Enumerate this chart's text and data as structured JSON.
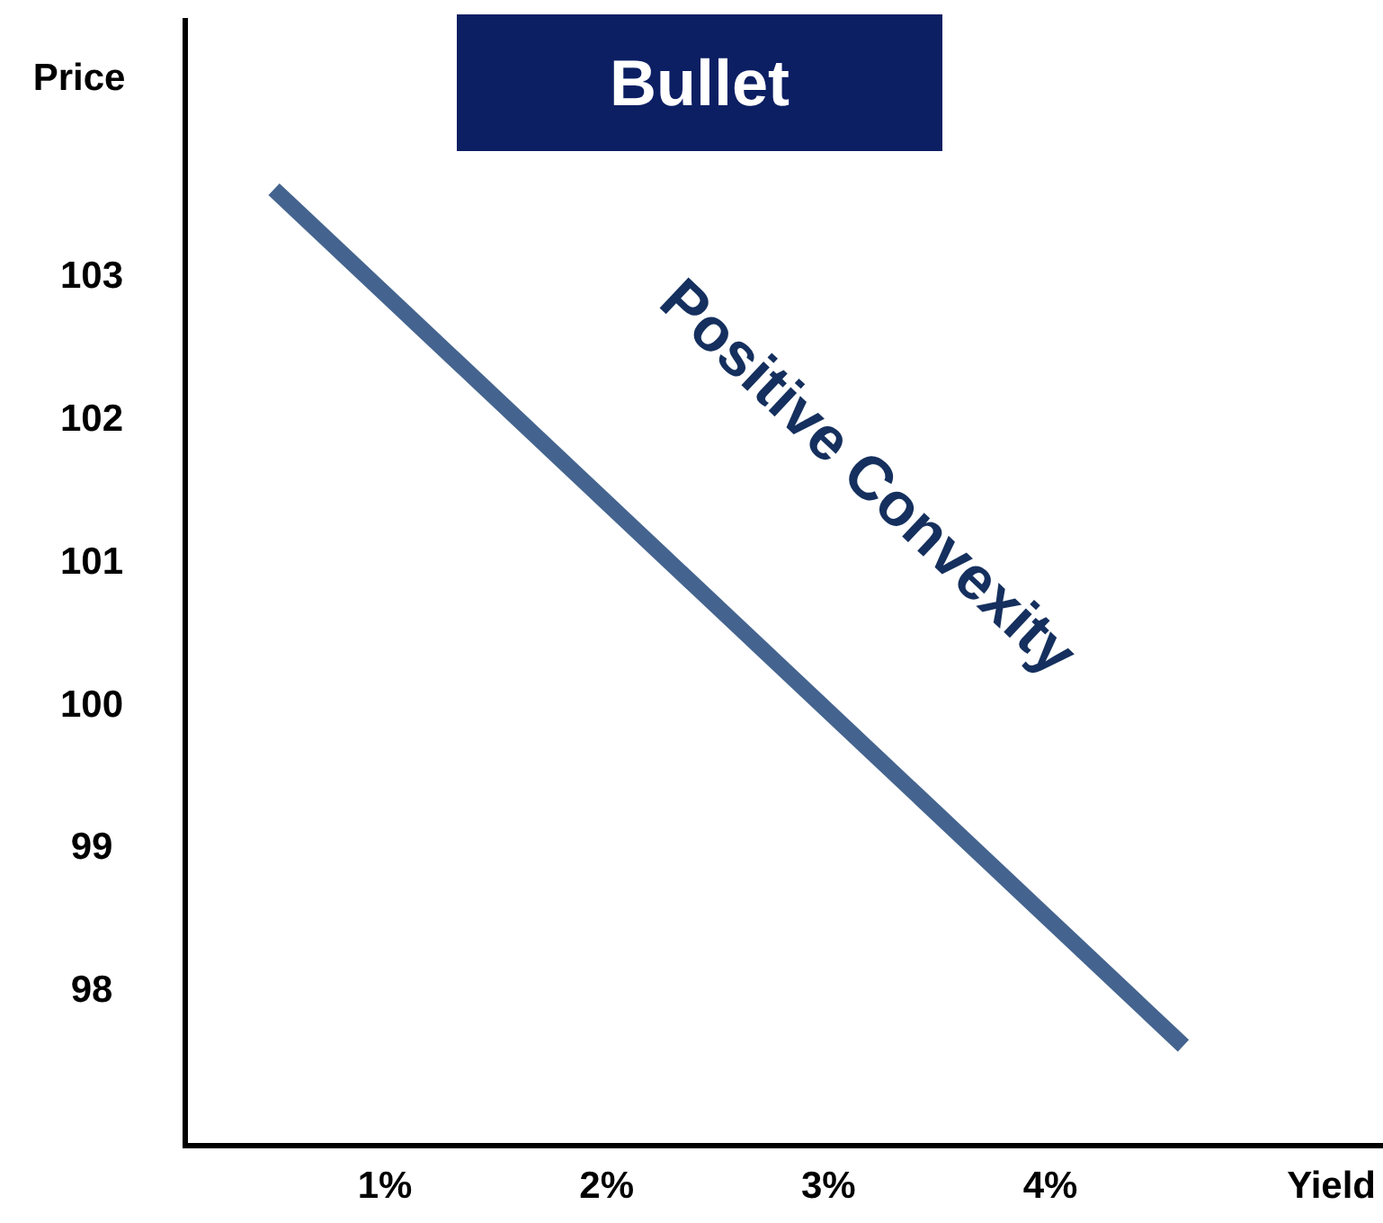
{
  "chart_data": {
    "type": "line",
    "title": "Bullet",
    "xlabel": "Yield",
    "ylabel": "Price",
    "x": [
      0.5,
      4.6
    ],
    "series": [
      {
        "color": "#44648f",
        "values": [
          103.6,
          97.6
        ]
      }
    ],
    "xlim": [
      0.1,
      5.5
    ],
    "ylim": [
      96.9,
      104.8
    ],
    "xticks": [
      {
        "value": 1,
        "label": "1%"
      },
      {
        "value": 2,
        "label": "2%"
      },
      {
        "value": 3,
        "label": "3%"
      },
      {
        "value": 4,
        "label": "4%"
      }
    ],
    "yticks": [
      98,
      99,
      100,
      101,
      102,
      103
    ],
    "annotations": [
      "Positive Convexity"
    ],
    "grid": false,
    "marker": "none",
    "line_style": "solid"
  }
}
